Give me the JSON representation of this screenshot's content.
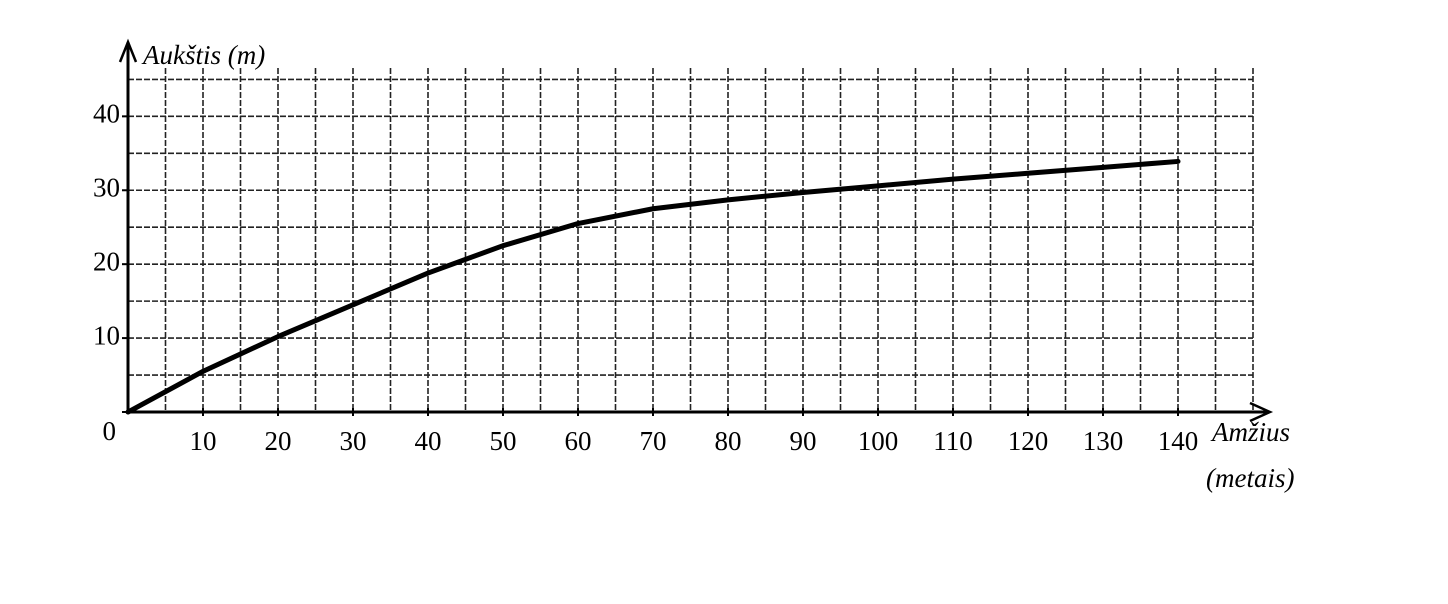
{
  "chart_data": {
    "type": "line",
    "ylabel": "Aukštis (m)",
    "xlabel": [
      "Amžius",
      "(metais)"
    ],
    "x": [
      0,
      10,
      20,
      30,
      40,
      50,
      60,
      70,
      80,
      90,
      100,
      110,
      120,
      130,
      140
    ],
    "series": [
      {
        "name": "Aukštis",
        "color": "#000000",
        "values": [
          0,
          5.5,
          10.2,
          14.5,
          18.8,
          22.5,
          25.5,
          27.5,
          28.7,
          29.7,
          30.6,
          31.5,
          32.3,
          33.1,
          33.9
        ]
      }
    ],
    "xlim": [
      0,
      150
    ],
    "ylim": [
      0,
      46
    ],
    "xticks": [
      10,
      20,
      30,
      40,
      50,
      60,
      70,
      80,
      90,
      100,
      110,
      120,
      130,
      140
    ],
    "yticks": [
      0,
      10,
      20,
      30,
      40
    ],
    "xgrid": [
      5,
      10,
      15,
      20,
      25,
      30,
      35,
      40,
      45,
      50,
      55,
      60,
      65,
      70,
      75,
      80,
      85,
      90,
      95,
      100,
      105,
      110,
      115,
      120,
      125,
      130,
      135,
      140,
      145,
      150
    ],
    "ygrid": [
      5,
      10,
      15,
      20,
      25,
      30,
      35,
      40,
      45
    ],
    "grid": true
  }
}
